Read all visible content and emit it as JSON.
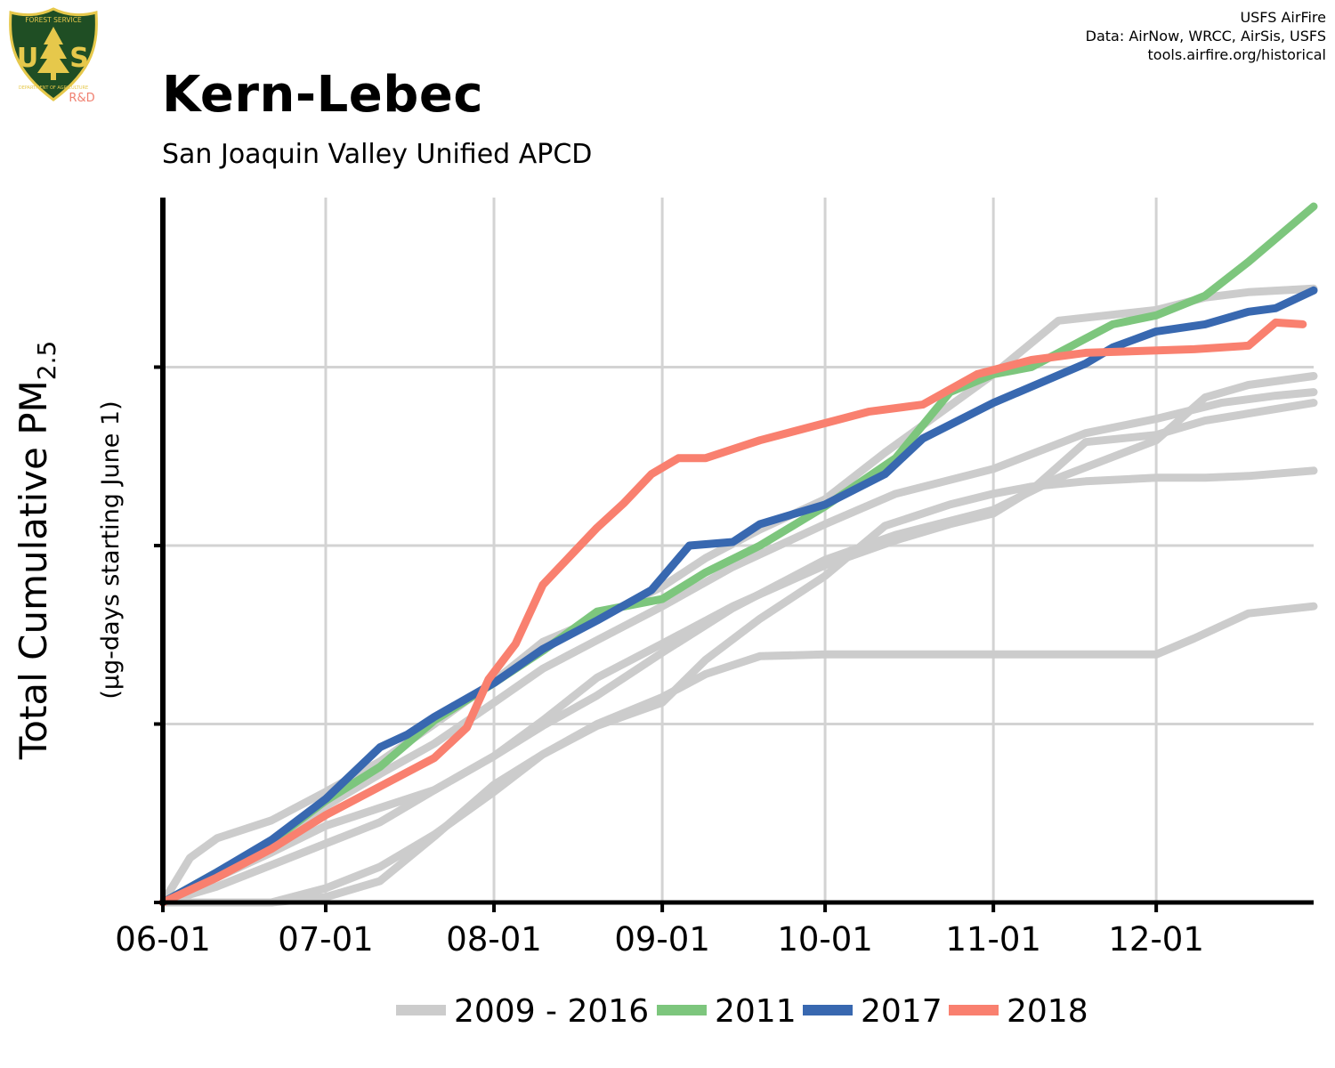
{
  "logo": {
    "top_text": "FOREST SERVICE",
    "letters_left": "U",
    "letters_right": "S",
    "bottom_text": "DEPARTMENT OF AGRICULTURE",
    "sub_label": "R&D",
    "colors": {
      "shield": "#1f4e24",
      "border": "#e6c84b",
      "letters": "#e6c84b",
      "sub_label": "#f08070"
    }
  },
  "credits": [
    "USFS AirFire",
    "Data: AirNow, WRCC, AirSis, USFS",
    "tools.airfire.org/historical"
  ],
  "title": "Kern-Lebec",
  "subtitle": "San Joaquin Valley Unified APCD",
  "colors": {
    "history": "#cccccc",
    "y2011": "#7dc67d",
    "y2017": "#3868b0",
    "y2018": "#f9806f",
    "grid": "#d3d3d3",
    "axis": "#000000"
  },
  "chart_data": {
    "type": "line",
    "ylabel_main": "Total Cumulative PM",
    "ylabel_sub": "2.5",
    "ylabel_units": "(μg-days starting June 1)",
    "x_unit": "day of season (0 = 06-01)",
    "xlim": [
      0,
      212
    ],
    "ylim": [
      0,
      3950
    ],
    "x_ticks": [
      {
        "x": 0,
        "label": "06-01"
      },
      {
        "x": 30,
        "label": "07-01"
      },
      {
        "x": 61,
        "label": "08-01"
      },
      {
        "x": 92,
        "label": "09-01"
      },
      {
        "x": 122,
        "label": "10-01"
      },
      {
        "x": 153,
        "label": "11-01"
      },
      {
        "x": 183,
        "label": "12-01"
      }
    ],
    "y_ticks": [
      0,
      1000,
      2000,
      3000
    ],
    "y_tick_labels_shown": false,
    "grid": true,
    "legend_position": "bottom",
    "legend": [
      {
        "label": "2009 - 2016",
        "color": "#cccccc"
      },
      {
        "label": "2011",
        "color": "#7dc67d"
      },
      {
        "label": "2017",
        "color": "#3868b0"
      },
      {
        "label": "2018",
        "color": "#f9806f"
      }
    ],
    "series": [
      {
        "group": "history",
        "x": [
          0,
          5,
          10,
          20,
          30,
          40,
          50,
          61,
          70,
          80,
          92,
          100,
          110,
          122,
          133,
          153,
          165,
          183,
          192,
          200,
          212
        ],
        "y": [
          0,
          250,
          360,
          460,
          620,
          790,
          1000,
          1240,
          1460,
          1590,
          1770,
          1930,
          2090,
          2260,
          2520,
          2960,
          3260,
          3320,
          3390,
          3420,
          3440
        ]
      },
      {
        "group": "history",
        "x": [
          0,
          10,
          20,
          30,
          40,
          50,
          61,
          70,
          80,
          92,
          105,
          122,
          135,
          153,
          170,
          183,
          195,
          205,
          212
        ],
        "y": [
          0,
          160,
          330,
          540,
          720,
          890,
          1120,
          1310,
          1470,
          1660,
          1880,
          2120,
          2290,
          2430,
          2630,
          2710,
          2800,
          2840,
          2860
        ]
      },
      {
        "group": "history",
        "x": [
          0,
          10,
          20,
          30,
          40,
          50,
          61,
          70,
          80,
          92,
          105,
          122,
          135,
          145,
          153,
          160,
          170,
          183,
          192,
          200,
          212
        ],
        "y": [
          0,
          140,
          280,
          430,
          530,
          630,
          820,
          1020,
          1260,
          1450,
          1660,
          1890,
          2030,
          2120,
          2180,
          2310,
          2580,
          2620,
          2700,
          2740,
          2800
        ]
      },
      {
        "group": "history",
        "x": [
          0,
          10,
          20,
          30,
          40,
          50,
          61,
          70,
          80,
          92,
          105,
          122,
          135,
          153,
          165,
          183,
          192,
          200,
          212
        ],
        "y": [
          0,
          90,
          210,
          330,
          450,
          630,
          820,
          990,
          1160,
          1400,
          1650,
          1920,
          2060,
          2200,
          2380,
          2590,
          2830,
          2900,
          2950
        ]
      },
      {
        "group": "history",
        "x": [
          0,
          20,
          30,
          40,
          50,
          61,
          70,
          80,
          92,
          100,
          110,
          122,
          133,
          145,
          153,
          160,
          170,
          183,
          192,
          200,
          212
        ],
        "y": [
          0,
          0,
          80,
          200,
          380,
          620,
          830,
          990,
          1120,
          1360,
          1590,
          1830,
          2110,
          2230,
          2290,
          2330,
          2360,
          2380,
          2380,
          2390,
          2420
        ]
      },
      {
        "group": "history",
        "x": [
          0,
          20,
          30,
          40,
          50,
          61,
          70,
          80,
          92,
          100,
          110,
          122,
          135,
          145,
          153,
          170,
          183,
          190,
          200,
          212
        ],
        "y": [
          0,
          0,
          30,
          120,
          370,
          660,
          830,
          1000,
          1150,
          1280,
          1380,
          1390,
          1390,
          1390,
          1390,
          1390,
          1390,
          1480,
          1620,
          1660
        ]
      },
      {
        "group": "y2011",
        "x": [
          0,
          10,
          20,
          30,
          40,
          50,
          61,
          70,
          80,
          92,
          100,
          110,
          122,
          135,
          145,
          153,
          160,
          170,
          175,
          183,
          192,
          200,
          212
        ],
        "y": [
          0,
          170,
          340,
          570,
          760,
          1020,
          1230,
          1410,
          1630,
          1700,
          1850,
          2000,
          2220,
          2490,
          2860,
          2960,
          3000,
          3160,
          3240,
          3290,
          3400,
          3590,
          3900
        ]
      },
      {
        "group": "y2017",
        "x": [
          0,
          10,
          20,
          30,
          40,
          45,
          50,
          61,
          70,
          80,
          90,
          97,
          105,
          110,
          122,
          133,
          140,
          153,
          160,
          170,
          175,
          183,
          192,
          200,
          205,
          212
        ],
        "y": [
          0,
          170,
          350,
          580,
          870,
          940,
          1040,
          1230,
          1420,
          1580,
          1750,
          2000,
          2020,
          2120,
          2230,
          2400,
          2600,
          2800,
          2890,
          3020,
          3110,
          3200,
          3240,
          3310,
          3330,
          3430
        ]
      },
      {
        "group": "y2018",
        "x": [
          0,
          10,
          20,
          30,
          40,
          50,
          56,
          60,
          65,
          70,
          75,
          80,
          85,
          90,
          95,
          100,
          110,
          120,
          130,
          140,
          150,
          160,
          170,
          180,
          190,
          200,
          205,
          210
        ],
        "y": [
          0,
          140,
          300,
          490,
          650,
          810,
          980,
          1250,
          1450,
          1780,
          1940,
          2100,
          2240,
          2400,
          2490,
          2490,
          2590,
          2670,
          2750,
          2790,
          2960,
          3040,
          3080,
          3090,
          3100,
          3120,
          3250,
          3240
        ]
      }
    ]
  }
}
